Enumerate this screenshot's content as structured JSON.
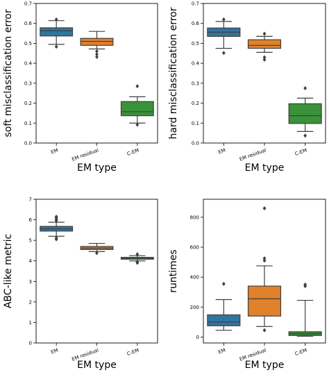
{
  "chart_data": [
    {
      "type": "box",
      "xlabel": "EM type",
      "ylabel": "soft misclassification error",
      "categories": [
        "EM",
        "EM residual",
        "C-EM"
      ],
      "yticks": [
        0.0,
        0.1,
        0.2,
        0.3,
        0.4,
        0.5,
        0.6,
        0.7
      ],
      "ylim": [
        0.0,
        0.7
      ],
      "boxes": [
        {
          "category": "EM",
          "whisker_low": 0.495,
          "q1": 0.537,
          "median": 0.563,
          "q3": 0.578,
          "whisker_high": 0.614,
          "outliers": [
            0.483,
            0.62
          ],
          "color": "#3274a1"
        },
        {
          "category": "EM residual",
          "whisker_low": 0.472,
          "q1": 0.49,
          "median": 0.51,
          "q3": 0.525,
          "whisker_high": 0.56,
          "outliers": [
            0.46,
            0.445,
            0.432
          ],
          "color": "#e1812c"
        },
        {
          "category": "C-EM",
          "whisker_low": 0.1,
          "q1": 0.137,
          "median": 0.157,
          "q3": 0.208,
          "whisker_high": 0.232,
          "outliers": [
            0.092,
            0.285
          ],
          "color": "#3a923a"
        }
      ]
    },
    {
      "type": "box",
      "xlabel": "EM type",
      "ylabel": "hard misclassification error",
      "categories": [
        "EM",
        "EM residual",
        "C-EM"
      ],
      "yticks": [
        0.0,
        0.1,
        0.2,
        0.3,
        0.4,
        0.5,
        0.6,
        0.7
      ],
      "ylim": [
        0.0,
        0.7
      ],
      "boxes": [
        {
          "category": "EM",
          "whisker_low": 0.475,
          "q1": 0.535,
          "median": 0.556,
          "q3": 0.577,
          "whisker_high": 0.61,
          "outliers": [
            0.452,
            0.62
          ],
          "color": "#3274a1"
        },
        {
          "category": "EM residual",
          "whisker_low": 0.455,
          "q1": 0.475,
          "median": 0.49,
          "q3": 0.518,
          "whisker_high": 0.535,
          "outliers": [
            0.43,
            0.418,
            0.548
          ],
          "color": "#e1812c"
        },
        {
          "category": "C-EM",
          "whisker_low": 0.058,
          "q1": 0.098,
          "median": 0.137,
          "q3": 0.197,
          "whisker_high": 0.225,
          "outliers": [
            0.037,
            0.275
          ],
          "color": "#3a923a"
        }
      ]
    },
    {
      "type": "box",
      "xlabel": "EM type",
      "ylabel": "ABC-like metric",
      "categories": [
        "EM",
        "EM residual",
        "C-EM"
      ],
      "yticks": [
        0,
        1,
        2,
        3,
        4,
        5,
        6,
        7
      ],
      "ylim": [
        0,
        7
      ],
      "boxes": [
        {
          "category": "EM",
          "whisker_low": 5.2,
          "q1": 5.45,
          "median": 5.56,
          "q3": 5.68,
          "whisker_high": 5.88,
          "outliers": [
            5.05,
            5.12,
            5.95,
            6.02,
            6.1,
            6.15
          ],
          "color": "#3274a1"
        },
        {
          "category": "EM residual",
          "whisker_low": 4.45,
          "q1": 4.55,
          "median": 4.62,
          "q3": 4.7,
          "whisker_high": 4.85,
          "outliers": [
            4.38
          ],
          "color": "#e1812c"
        },
        {
          "category": "C-EM",
          "whisker_low": 4.0,
          "q1": 4.08,
          "median": 4.13,
          "q3": 4.17,
          "whisker_high": 4.25,
          "outliers": [
            3.9,
            3.95,
            4.32
          ],
          "color": "#3a923a"
        }
      ]
    },
    {
      "type": "box",
      "xlabel": "EM type",
      "ylabel": "runtimes",
      "categories": [
        "EM",
        "EM residual",
        "C-EM"
      ],
      "yticks": [
        0,
        200,
        400,
        600,
        800
      ],
      "ylim": [
        -40,
        920
      ],
      "boxes": [
        {
          "category": "EM",
          "whisker_low": 45,
          "q1": 75,
          "median": 100,
          "q3": 148,
          "whisker_high": 250,
          "outliers": [
            355
          ],
          "color": "#3274a1"
        },
        {
          "category": "EM residual",
          "whisker_low": 70,
          "q1": 140,
          "median": 255,
          "q3": 340,
          "whisker_high": 475,
          "outliers": [
            45,
            510,
            525,
            860
          ],
          "color": "#e1812c"
        },
        {
          "category": "C-EM",
          "whisker_low": 5,
          "q1": 10,
          "median": 22,
          "q3": 35,
          "whisker_high": 245,
          "outliers": [
            340,
            350
          ],
          "color": "#3a923a"
        }
      ]
    }
  ]
}
